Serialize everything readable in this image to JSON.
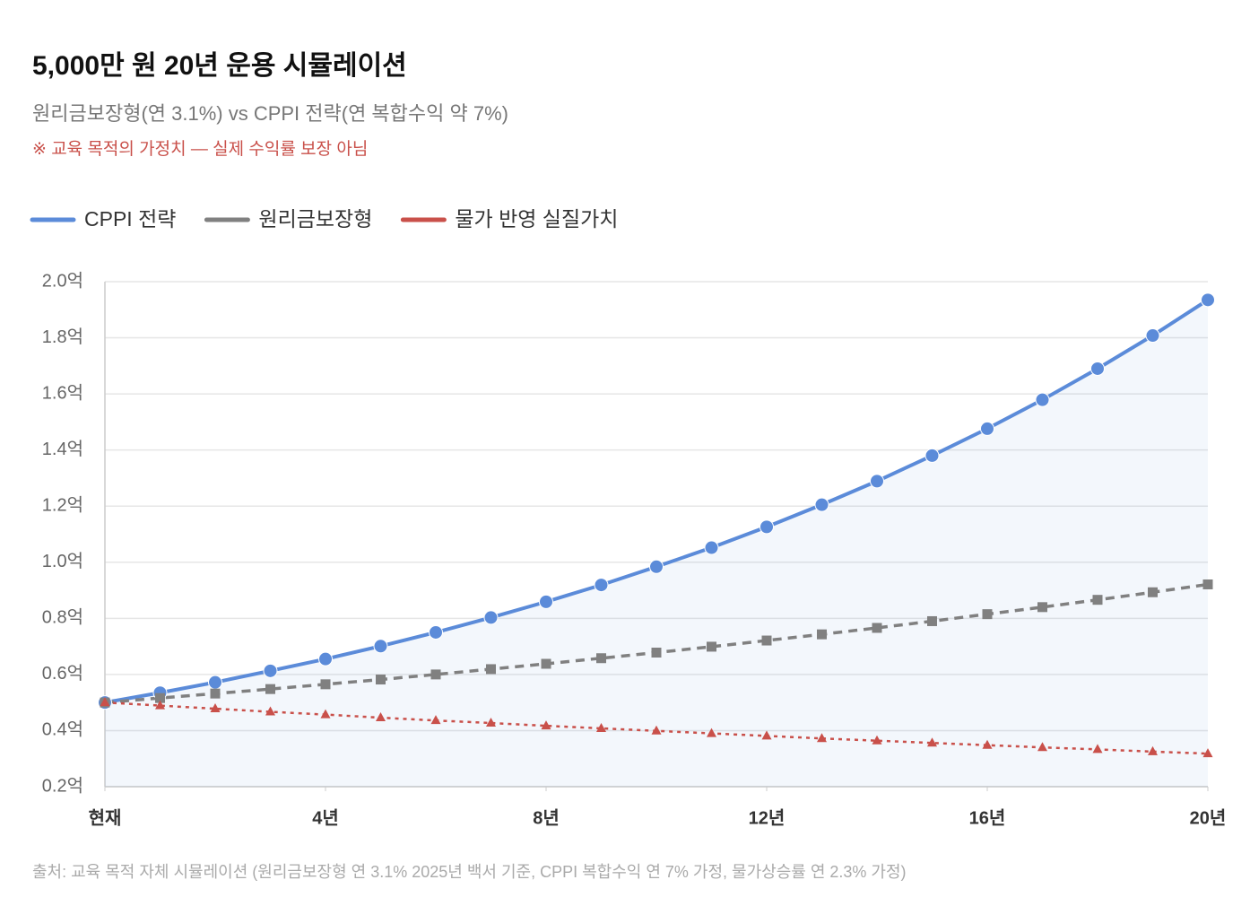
{
  "chart_data": {
    "type": "line",
    "title": "5,000만 원 20년 운용 시뮬레이션",
    "subtitle": "원리금보장형(연 3.1%) vs CPPI 전략(연 복합수익 약 7%)",
    "note": "※ 교육 목적의 가정치 — 실제 수익률 보장 아님",
    "source": "출처: 교육 목적 자체 시뮬레이션 (원리금보장형 연 3.1% 2025년 백서 기준, CPPI 복합수익 연 7% 가정, 물가상승률 연 2.3% 가정)",
    "x": [
      0,
      1,
      2,
      3,
      4,
      5,
      6,
      7,
      8,
      9,
      10,
      11,
      12,
      13,
      14,
      15,
      16,
      17,
      18,
      19,
      20
    ],
    "xlim": [
      0,
      20
    ],
    "xticks": [
      {
        "value": 0,
        "label": "현재"
      },
      {
        "value": 4,
        "label": "4년"
      },
      {
        "value": 8,
        "label": "8년"
      },
      {
        "value": 12,
        "label": "12년"
      },
      {
        "value": 16,
        "label": "16년"
      },
      {
        "value": 20,
        "label": "20년"
      }
    ],
    "ylim": [
      0.2,
      2.0
    ],
    "yticks": [
      {
        "value": 0.2,
        "label": "0.2억"
      },
      {
        "value": 0.4,
        "label": "0.4억"
      },
      {
        "value": 0.6,
        "label": "0.6억"
      },
      {
        "value": 0.8,
        "label": "0.8억"
      },
      {
        "value": 1.0,
        "label": "1.0억"
      },
      {
        "value": 1.2,
        "label": "1.2억"
      },
      {
        "value": 1.4,
        "label": "1.4억"
      },
      {
        "value": 1.6,
        "label": "1.6억"
      },
      {
        "value": 1.8,
        "label": "1.8억"
      },
      {
        "value": 2.0,
        "label": "2.0억"
      }
    ],
    "grid": true,
    "legend": "top-left",
    "series": [
      {
        "name": "CPPI 전략",
        "color": "#5b8bd9",
        "marker": "circle",
        "dash": "solid",
        "area": true,
        "values": [
          0.5,
          0.535,
          0.572,
          0.613,
          0.655,
          0.701,
          0.75,
          0.803,
          0.859,
          0.919,
          0.984,
          1.052,
          1.126,
          1.205,
          1.289,
          1.38,
          1.476,
          1.579,
          1.69,
          1.808,
          1.935
        ]
      },
      {
        "name": "원리금보장형",
        "color": "#808080",
        "marker": "square",
        "dash": "dashed",
        "area": false,
        "values": [
          0.5,
          0.516,
          0.532,
          0.548,
          0.565,
          0.582,
          0.6,
          0.619,
          0.638,
          0.658,
          0.678,
          0.699,
          0.721,
          0.743,
          0.766,
          0.79,
          0.815,
          0.84,
          0.866,
          0.893,
          0.921
        ]
      },
      {
        "name": "물가 반영 실질가치",
        "color": "#c9504a",
        "marker": "triangle",
        "dash": "dotted",
        "area": false,
        "values": [
          0.5,
          0.489,
          0.478,
          0.467,
          0.457,
          0.446,
          0.436,
          0.427,
          0.417,
          0.408,
          0.399,
          0.39,
          0.381,
          0.372,
          0.364,
          0.356,
          0.348,
          0.34,
          0.333,
          0.325,
          0.318
        ]
      }
    ]
  }
}
